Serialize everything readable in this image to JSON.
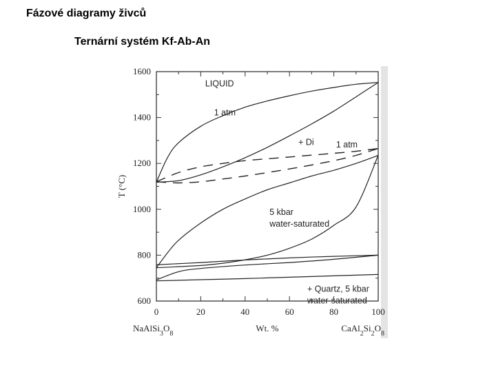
{
  "slide": {
    "title": "Fázové diagramy živců",
    "subtitle": "Ternární systém Kf-Ab-An"
  },
  "chart_data": {
    "type": "line",
    "xlabel": "Wt. %",
    "ylabel": "T (°C)",
    "xlim": [
      0,
      100
    ],
    "ylim": [
      600,
      1600
    ],
    "x_ticks": [
      0,
      20,
      40,
      60,
      80,
      100
    ],
    "y_ticks": [
      600,
      800,
      1000,
      1200,
      1400,
      1600
    ],
    "x_end_labels": {
      "left": "NaAlSi3O8",
      "right": "CaAl2Si2O8"
    },
    "grid": false,
    "annotations": [
      {
        "text": "LIQUID",
        "x": 22,
        "y": 1535
      },
      {
        "text": "1 atm",
        "x": 26,
        "y": 1410
      },
      {
        "text": "+ Di",
        "x": 64,
        "y": 1280
      },
      {
        "text": "1 atm",
        "x": 81,
        "y": 1270
      },
      {
        "text": "5 kbar",
        "x": 51,
        "y": 975
      },
      {
        "text": "water-saturated",
        "x": 51,
        "y": 925
      },
      {
        "text": "+ Quartz, 5 kbar",
        "x": 68,
        "y": 640
      },
      {
        "text": "water-saturated",
        "x": 68,
        "y": 590
      }
    ],
    "series": [
      {
        "group": "1 atm",
        "style": "solid",
        "x": [
          0,
          5,
          10,
          20,
          30,
          40,
          50,
          60,
          70,
          80,
          90,
          100
        ],
        "y": [
          1118,
          1225,
          1290,
          1362,
          1408,
          1445,
          1472,
          1495,
          1515,
          1531,
          1545,
          1553
        ]
      },
      {
        "group": "1 atm",
        "style": "solid",
        "x": [
          0,
          10,
          20,
          30,
          40,
          50,
          60,
          70,
          80,
          90,
          100
        ],
        "y": [
          1118,
          1125,
          1150,
          1185,
          1225,
          1270,
          1320,
          1372,
          1428,
          1490,
          1553
        ]
      },
      {
        "group": "+ Di 1 atm",
        "style": "dashed",
        "x": [
          0,
          10,
          20,
          30,
          40,
          50,
          60,
          70,
          80,
          90,
          100
        ],
        "y": [
          1120,
          1160,
          1185,
          1200,
          1212,
          1220,
          1228,
          1236,
          1244,
          1253,
          1265
        ]
      },
      {
        "group": "+ Di 1 atm",
        "style": "dashed",
        "x": [
          0,
          10,
          20,
          30,
          40,
          50,
          60,
          70,
          80,
          90,
          100
        ],
        "y": [
          1120,
          1115,
          1120,
          1132,
          1145,
          1160,
          1176,
          1193,
          1212,
          1235,
          1265
        ]
      },
      {
        "group": "5 kbar water-saturated",
        "style": "solid",
        "x": [
          0,
          5,
          10,
          20,
          30,
          40,
          50,
          60,
          70,
          80,
          90,
          100
        ],
        "y": [
          745,
          810,
          865,
          940,
          1000,
          1045,
          1085,
          1115,
          1145,
          1170,
          1200,
          1235
        ]
      },
      {
        "group": "5 kbar water-saturated",
        "style": "solid",
        "x": [
          0,
          10,
          20,
          30,
          40,
          50,
          60,
          70,
          80,
          90,
          100
        ],
        "y": [
          745,
          750,
          755,
          765,
          780,
          800,
          830,
          870,
          930,
          1010,
          1235
        ]
      },
      {
        "group": "+ Quartz, 5 kbar water-saturated",
        "style": "solid",
        "x": [
          0,
          20,
          40,
          60,
          80,
          100
        ],
        "y": [
          758,
          768,
          779,
          788,
          795,
          800
        ]
      },
      {
        "group": "+ Quartz, 5 kbar water-saturated",
        "style": "solid",
        "x": [
          0,
          10,
          20,
          40,
          60,
          80,
          100
        ],
        "y": [
          692,
          728,
          742,
          757,
          768,
          782,
          800
        ]
      },
      {
        "group": "+ Quartz, 5 kbar water-saturated",
        "style": "solid",
        "x": [
          0,
          20,
          40,
          60,
          80,
          100
        ],
        "y": [
          688,
          693,
          698,
          704,
          710,
          716
        ]
      }
    ]
  }
}
